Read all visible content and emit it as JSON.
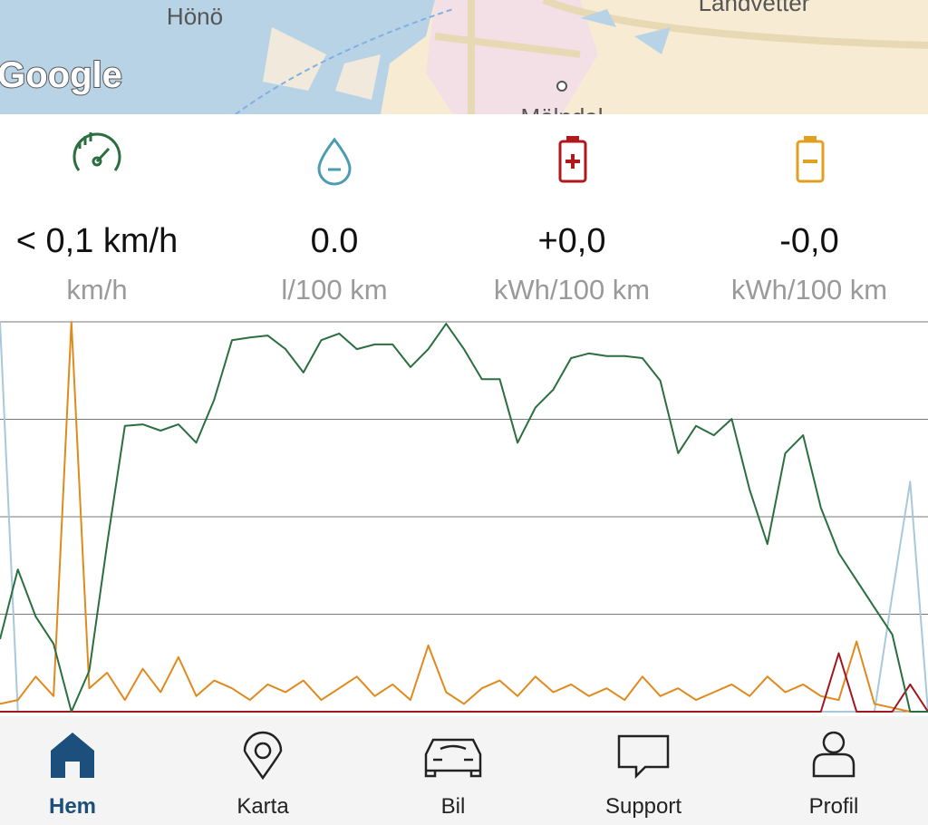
{
  "map": {
    "labels": [
      "Hönö",
      "Landvetter",
      "Mölndal"
    ],
    "attribution": "Google"
  },
  "stats": [
    {
      "value": "< 0,1 km/h",
      "unit": "km/h"
    },
    {
      "value": "0.0",
      "unit": "l/100 km"
    },
    {
      "value": "+0,0",
      "unit": "kWh/100 km"
    },
    {
      "value": "-0,0",
      "unit": "kWh/100 km"
    }
  ],
  "chart_data": {
    "type": "line",
    "ylim": [
      0,
      100
    ],
    "yticks": [
      0,
      25,
      50,
      75,
      100
    ],
    "grid": true,
    "series": [
      {
        "color": "#2b6e3f",
        "values": [
          18.6,
          36.5,
          24.4,
          17.4,
          0,
          10.5,
          43,
          73.3,
          73.7,
          72.1,
          73.7,
          69,
          80,
          95.3,
          96,
          96.5,
          93,
          87,
          95.3,
          97,
          93,
          94.2,
          94.2,
          88.4,
          93,
          99.5,
          93,
          85.3,
          85.3,
          69,
          78,
          82.6,
          90.7,
          91.9,
          91.2,
          91.2,
          90.7,
          84.9,
          66.3,
          73.3,
          70.9,
          75.1,
          57,
          43,
          66.3,
          70.9,
          52.3,
          40.7,
          33.7,
          26.7,
          19.8,
          0,
          0
        ]
      },
      {
        "color": "#e08a1e",
        "values": [
          2,
          3,
          9,
          4,
          100,
          6,
          10,
          3,
          11,
          5,
          14,
          4,
          8,
          6,
          3,
          7,
          5,
          8,
          3,
          6,
          9,
          4,
          7,
          3,
          17,
          5,
          2,
          6,
          8,
          4,
          9,
          5,
          7,
          4,
          6,
          3,
          9,
          4,
          6,
          3,
          5,
          7,
          4,
          9,
          5,
          7,
          4,
          3,
          18,
          2,
          1,
          0,
          0
        ]
      },
      {
        "color": "#a8c8dc",
        "values": [
          100,
          0,
          0,
          0,
          0,
          0,
          0,
          0,
          0,
          0,
          0,
          0,
          0,
          0,
          0,
          0,
          0,
          0,
          0,
          0,
          0,
          0,
          0,
          0,
          0,
          0,
          0,
          0,
          0,
          0,
          0,
          0,
          0,
          0,
          0,
          0,
          0,
          0,
          0,
          0,
          0,
          0,
          0,
          0,
          0,
          0,
          0,
          0,
          0,
          0,
          30,
          59,
          0
        ]
      },
      {
        "color": "#a0171c",
        "values": [
          0,
          0,
          0,
          0,
          0,
          0,
          0,
          0,
          0,
          0,
          0,
          0,
          0,
          0,
          0,
          0,
          0,
          0,
          0,
          0,
          0,
          0,
          0,
          0,
          0,
          0,
          0,
          0,
          0,
          0,
          0,
          0,
          0,
          0,
          0,
          0,
          0,
          0,
          0,
          0,
          0,
          0,
          0,
          0,
          0,
          0,
          0,
          15,
          0,
          0,
          0,
          7,
          0
        ]
      }
    ]
  },
  "nav": [
    {
      "label": "Hem",
      "active": true
    },
    {
      "label": "Karta",
      "active": false
    },
    {
      "label": "Bil",
      "active": false
    },
    {
      "label": "Support",
      "active": false
    },
    {
      "label": "Profil",
      "active": false
    }
  ]
}
